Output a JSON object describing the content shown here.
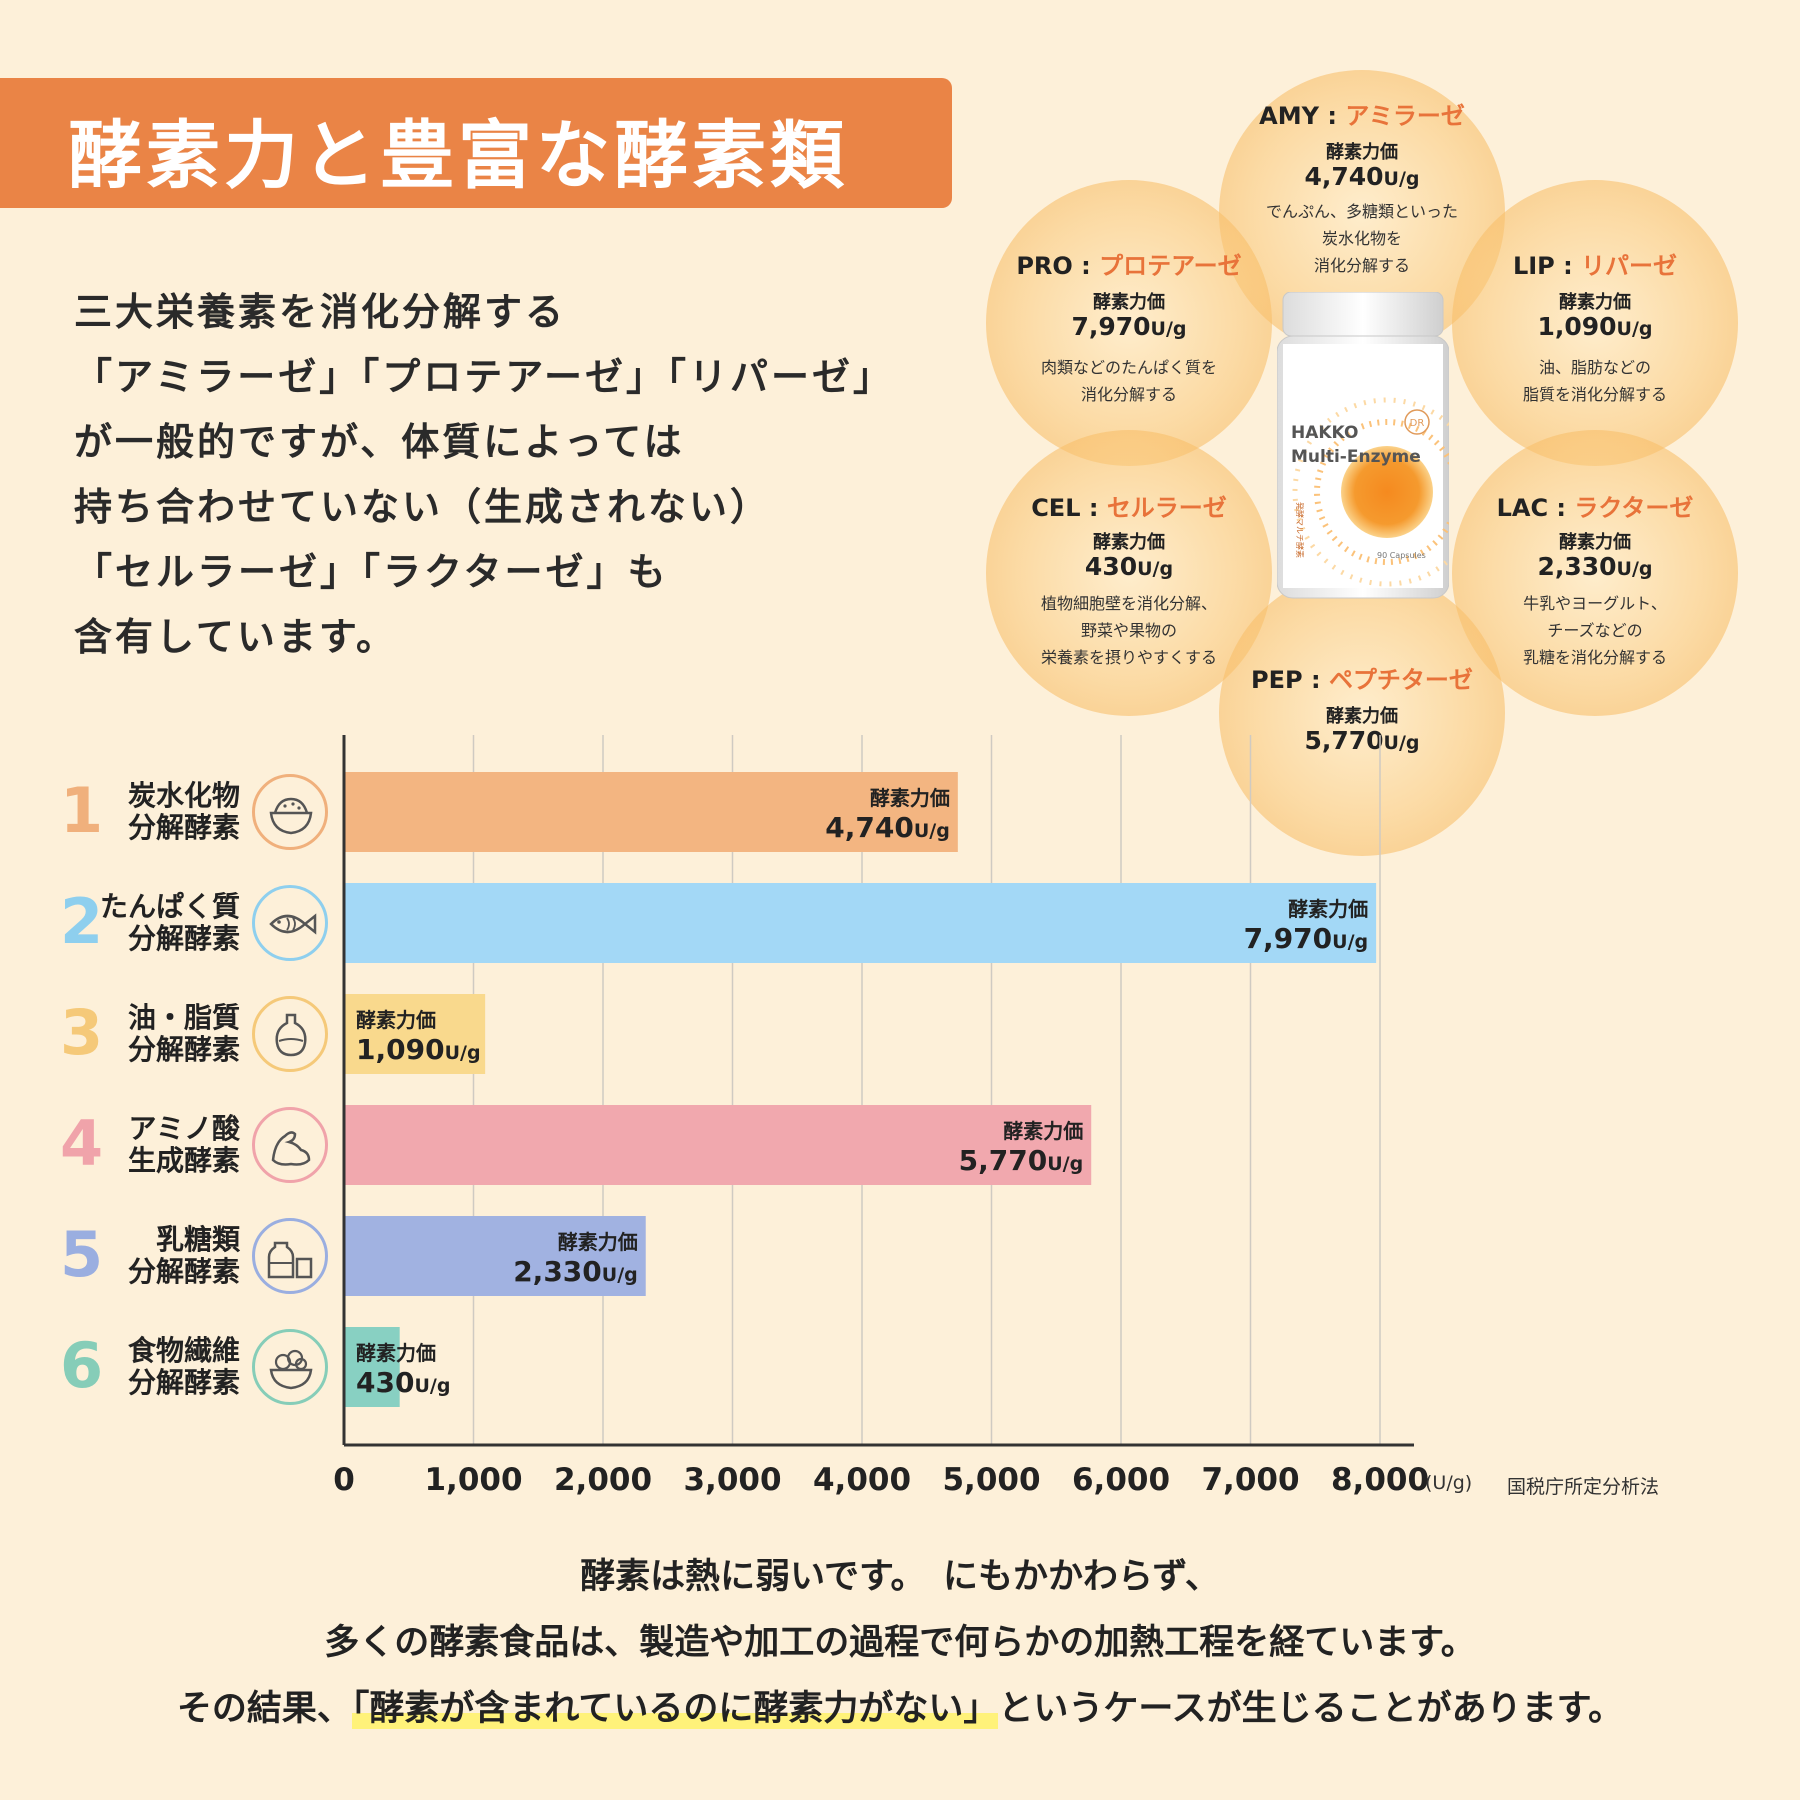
{
  "title": "酵素力と豊富な酵素類",
  "intro_lines": [
    "三大栄養素を消化分解する",
    "「アミラーゼ」「プロテアーゼ」「リパーゼ」",
    "が一般的ですが、体質によっては",
    "持ち合わせていない（生成されない）",
    "「セルラーゼ」「ラクターゼ」も",
    "含有しています。"
  ],
  "enzymes": [
    {
      "code": "AMY",
      "sep": " : ",
      "name": "アミラーゼ",
      "label": "酵素力価",
      "value": "4,740",
      "unit": "U/g",
      "desc": [
        "でんぷん、多糖類といった",
        "炭水化物を",
        "消化分解する"
      ]
    },
    {
      "code": "PRO",
      "sep": " : ",
      "name": "プロテアーゼ",
      "label": "酵素力価",
      "value": "7,970",
      "unit": "U/g",
      "desc": [
        "肉類などのたんぱく質を",
        "消化分解する"
      ]
    },
    {
      "code": "LIP",
      "sep": " : ",
      "name": "リパーゼ",
      "label": "酵素力価",
      "value": "1,090",
      "unit": "U/g",
      "desc": [
        "油、脂肪などの",
        "脂質を消化分解する"
      ]
    },
    {
      "code": "CEL",
      "sep": " : ",
      "name": "セルラーゼ",
      "label": "酵素力価",
      "value": "430",
      "unit": "U/g",
      "desc": [
        "植物細胞壁を消化分解、",
        "野菜や果物の",
        "栄養素を摂りやすくする"
      ]
    },
    {
      "code": "LAC",
      "sep": " : ",
      "name": "ラクターゼ",
      "label": "酵素力価",
      "value": "2,330",
      "unit": "U/g",
      "desc": [
        "牛乳やヨーグルト、",
        "チーズなどの",
        "乳糖を消化分解する"
      ]
    },
    {
      "code": "PEP",
      "sep": " : ",
      "name": "ペプチターゼ",
      "label": "酵素力価",
      "value": "5,770",
      "unit": "U/g",
      "desc": []
    }
  ],
  "product": {
    "brand_line1": "HAKKO",
    "brand_line2": "Multi-Enzyme",
    "logo": "DR",
    "side_text": "発酵マルチ酵素",
    "capsules": "90 Capsules"
  },
  "categories": [
    {
      "num": "1",
      "line1": "炭水化物",
      "line2": "分解酵素",
      "icon": "rice-bowl-icon",
      "color": "#f0b07c"
    },
    {
      "num": "2",
      "line1": "たんぱく質",
      "line2": "分解酵素",
      "icon": "fish-icon",
      "color": "#8ecfee"
    },
    {
      "num": "3",
      "line1": "油・脂質",
      "line2": "分解酵素",
      "icon": "oil-bottle-icon",
      "color": "#f5c979"
    },
    {
      "num": "4",
      "line1": "アミノ酸",
      "line2": "生成酵素",
      "icon": "muscle-arm-icon",
      "color": "#f0a3aa"
    },
    {
      "num": "5",
      "line1": "乳糖類",
      "line2": "分解酵素",
      "icon": "milk-bottle-icon",
      "color": "#9aaee0"
    },
    {
      "num": "6",
      "line1": "食物繊維",
      "line2": "分解酵素",
      "icon": "salad-bowl-icon",
      "color": "#86cdb8"
    }
  ],
  "chart_data": {
    "type": "bar",
    "orientation": "horizontal",
    "categories": [
      "炭水化物 分解酵素",
      "たんぱく質 分解酵素",
      "油・脂質 分解酵素",
      "アミノ酸 生成酵素",
      "乳糖類 分解酵素",
      "食物繊維 分解酵素"
    ],
    "values": [
      4740,
      7970,
      1090,
      5770,
      2330,
      430
    ],
    "value_labels": [
      "4,740",
      "7,970",
      "1,090",
      "5,770",
      "2,330",
      "430"
    ],
    "bar_label": "酵素力価",
    "value_unit": "U/g",
    "colors": [
      "#f3b581",
      "#a3d8f6",
      "#f9d98d",
      "#f1a8ae",
      "#a1b2e1",
      "#88d0c2"
    ],
    "xlim": [
      0,
      8000
    ],
    "x_ticks": [
      "0",
      "1,000",
      "2,000",
      "3,000",
      "4,000",
      "5,000",
      "6,000",
      "7,000",
      "8,000"
    ],
    "x_unit": "(U/g)",
    "grid": true,
    "note": "国税庁所定分析法"
  },
  "footer": {
    "line1": "酵素は熱に弱いです。　にもかかわらず、",
    "line2": "多くの酵素食品は、製造や加工の過程で何らかの加熱工程を経ています。",
    "line3_pre": "その結果、",
    "line3_hl": "「酵素が含まれているのに酵素力がない」",
    "line3_post": "というケースが生じることがあります。"
  }
}
